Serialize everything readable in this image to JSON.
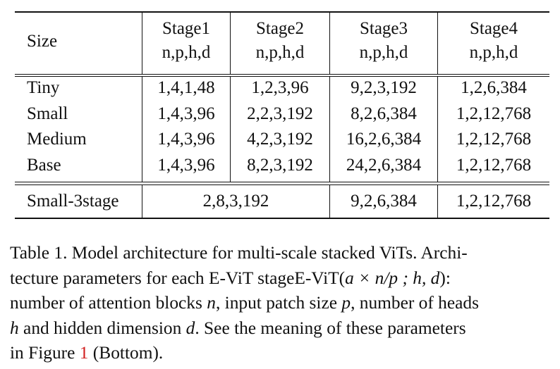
{
  "table": {
    "header_size": "Size",
    "stages": [
      {
        "name": "Stage1",
        "params": "n,p,h,d"
      },
      {
        "name": "Stage2",
        "params": "n,p,h,d"
      },
      {
        "name": "Stage3",
        "params": "n,p,h,d"
      },
      {
        "name": "Stage4",
        "params": "n,p,h,d"
      }
    ],
    "rows": [
      {
        "size": "Tiny",
        "values": [
          "1,4,1,48",
          "1,2,3,96",
          "9,2,3,192",
          "1,2,6,384"
        ]
      },
      {
        "size": "Small",
        "values": [
          "1,4,3,96",
          "2,2,3,192",
          "8,2,6,384",
          "1,2,12,768"
        ]
      },
      {
        "size": "Medium",
        "values": [
          "1,4,3,96",
          "4,2,3,192",
          "16,2,6,384",
          "1,2,12,768"
        ]
      },
      {
        "size": "Base",
        "values": [
          "1,4,3,96",
          "8,2,3,192",
          "24,2,6,384",
          "1,2,12,768"
        ]
      }
    ],
    "extra_row": {
      "size": "Small-3stage",
      "merged_stage12": "2,8,3,192",
      "stage3": "9,2,6,384",
      "stage4": "1,2,12,768"
    }
  },
  "caption": {
    "line1": "Table 1. Model architecture for multi-scale stacked ViTs. Archi-",
    "line2_a": "tecture parameters for each E-ViT stageE-ViT(",
    "line2_math": "a × n/p ; h, d",
    "line2_b": "):",
    "line3_a": "number of attention blocks ",
    "line3_n": "n",
    "line3_b": ", input patch size ",
    "line3_p": "p",
    "line3_c": ", number of heads",
    "line4_h": "h",
    "line4_a": " and hidden dimension ",
    "line4_d": "d",
    "line4_b": ". See the meaning of these parameters",
    "line5_a": "in Figure ",
    "line5_ref": "1",
    "line5_b": " (Bottom)."
  }
}
